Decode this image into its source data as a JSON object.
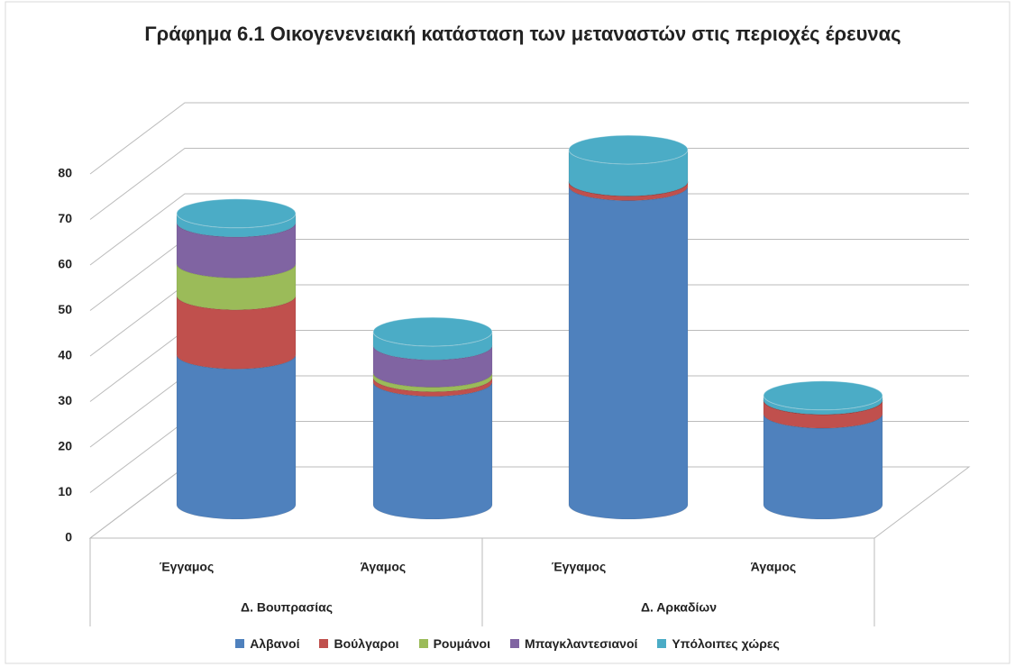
{
  "chart_data": {
    "type": "cylinder3d",
    "title": "Γράφημα 6.1 Οικογενενειακή κατάσταση των μεταναστών στις περιοχές έρευνας",
    "categories": [
      "Έγγαμος",
      "Άγαμος",
      "Έγγαμος",
      "Άγαμος"
    ],
    "groups": [
      "Δ. Βουπρασίας",
      "Δ. Αρκαδίων"
    ],
    "series": [
      {
        "name": "Αλβανοί",
        "color": "#4f81bd",
        "values": [
          33,
          27,
          70,
          20
        ]
      },
      {
        "name": "Βούλγαροι",
        "color": "#c0504d",
        "values": [
          13,
          1,
          1,
          3
        ]
      },
      {
        "name": "Ρουμάνοι",
        "color": "#9bbb59",
        "values": [
          7,
          1,
          0,
          0
        ]
      },
      {
        "name": "Μπαγκλαντεσιανοί",
        "color": "#8064a2",
        "values": [
          9,
          6,
          0,
          0
        ]
      },
      {
        "name": "Υπόλοιπες χώρες",
        "color": "#4bacc6",
        "values": [
          2,
          3,
          7,
          1
        ]
      }
    ],
    "ylim": [
      0,
      80
    ],
    "yticks": [
      0,
      10,
      20,
      30,
      40,
      50,
      60,
      70,
      80
    ],
    "grid": true,
    "legend": "bottom"
  }
}
